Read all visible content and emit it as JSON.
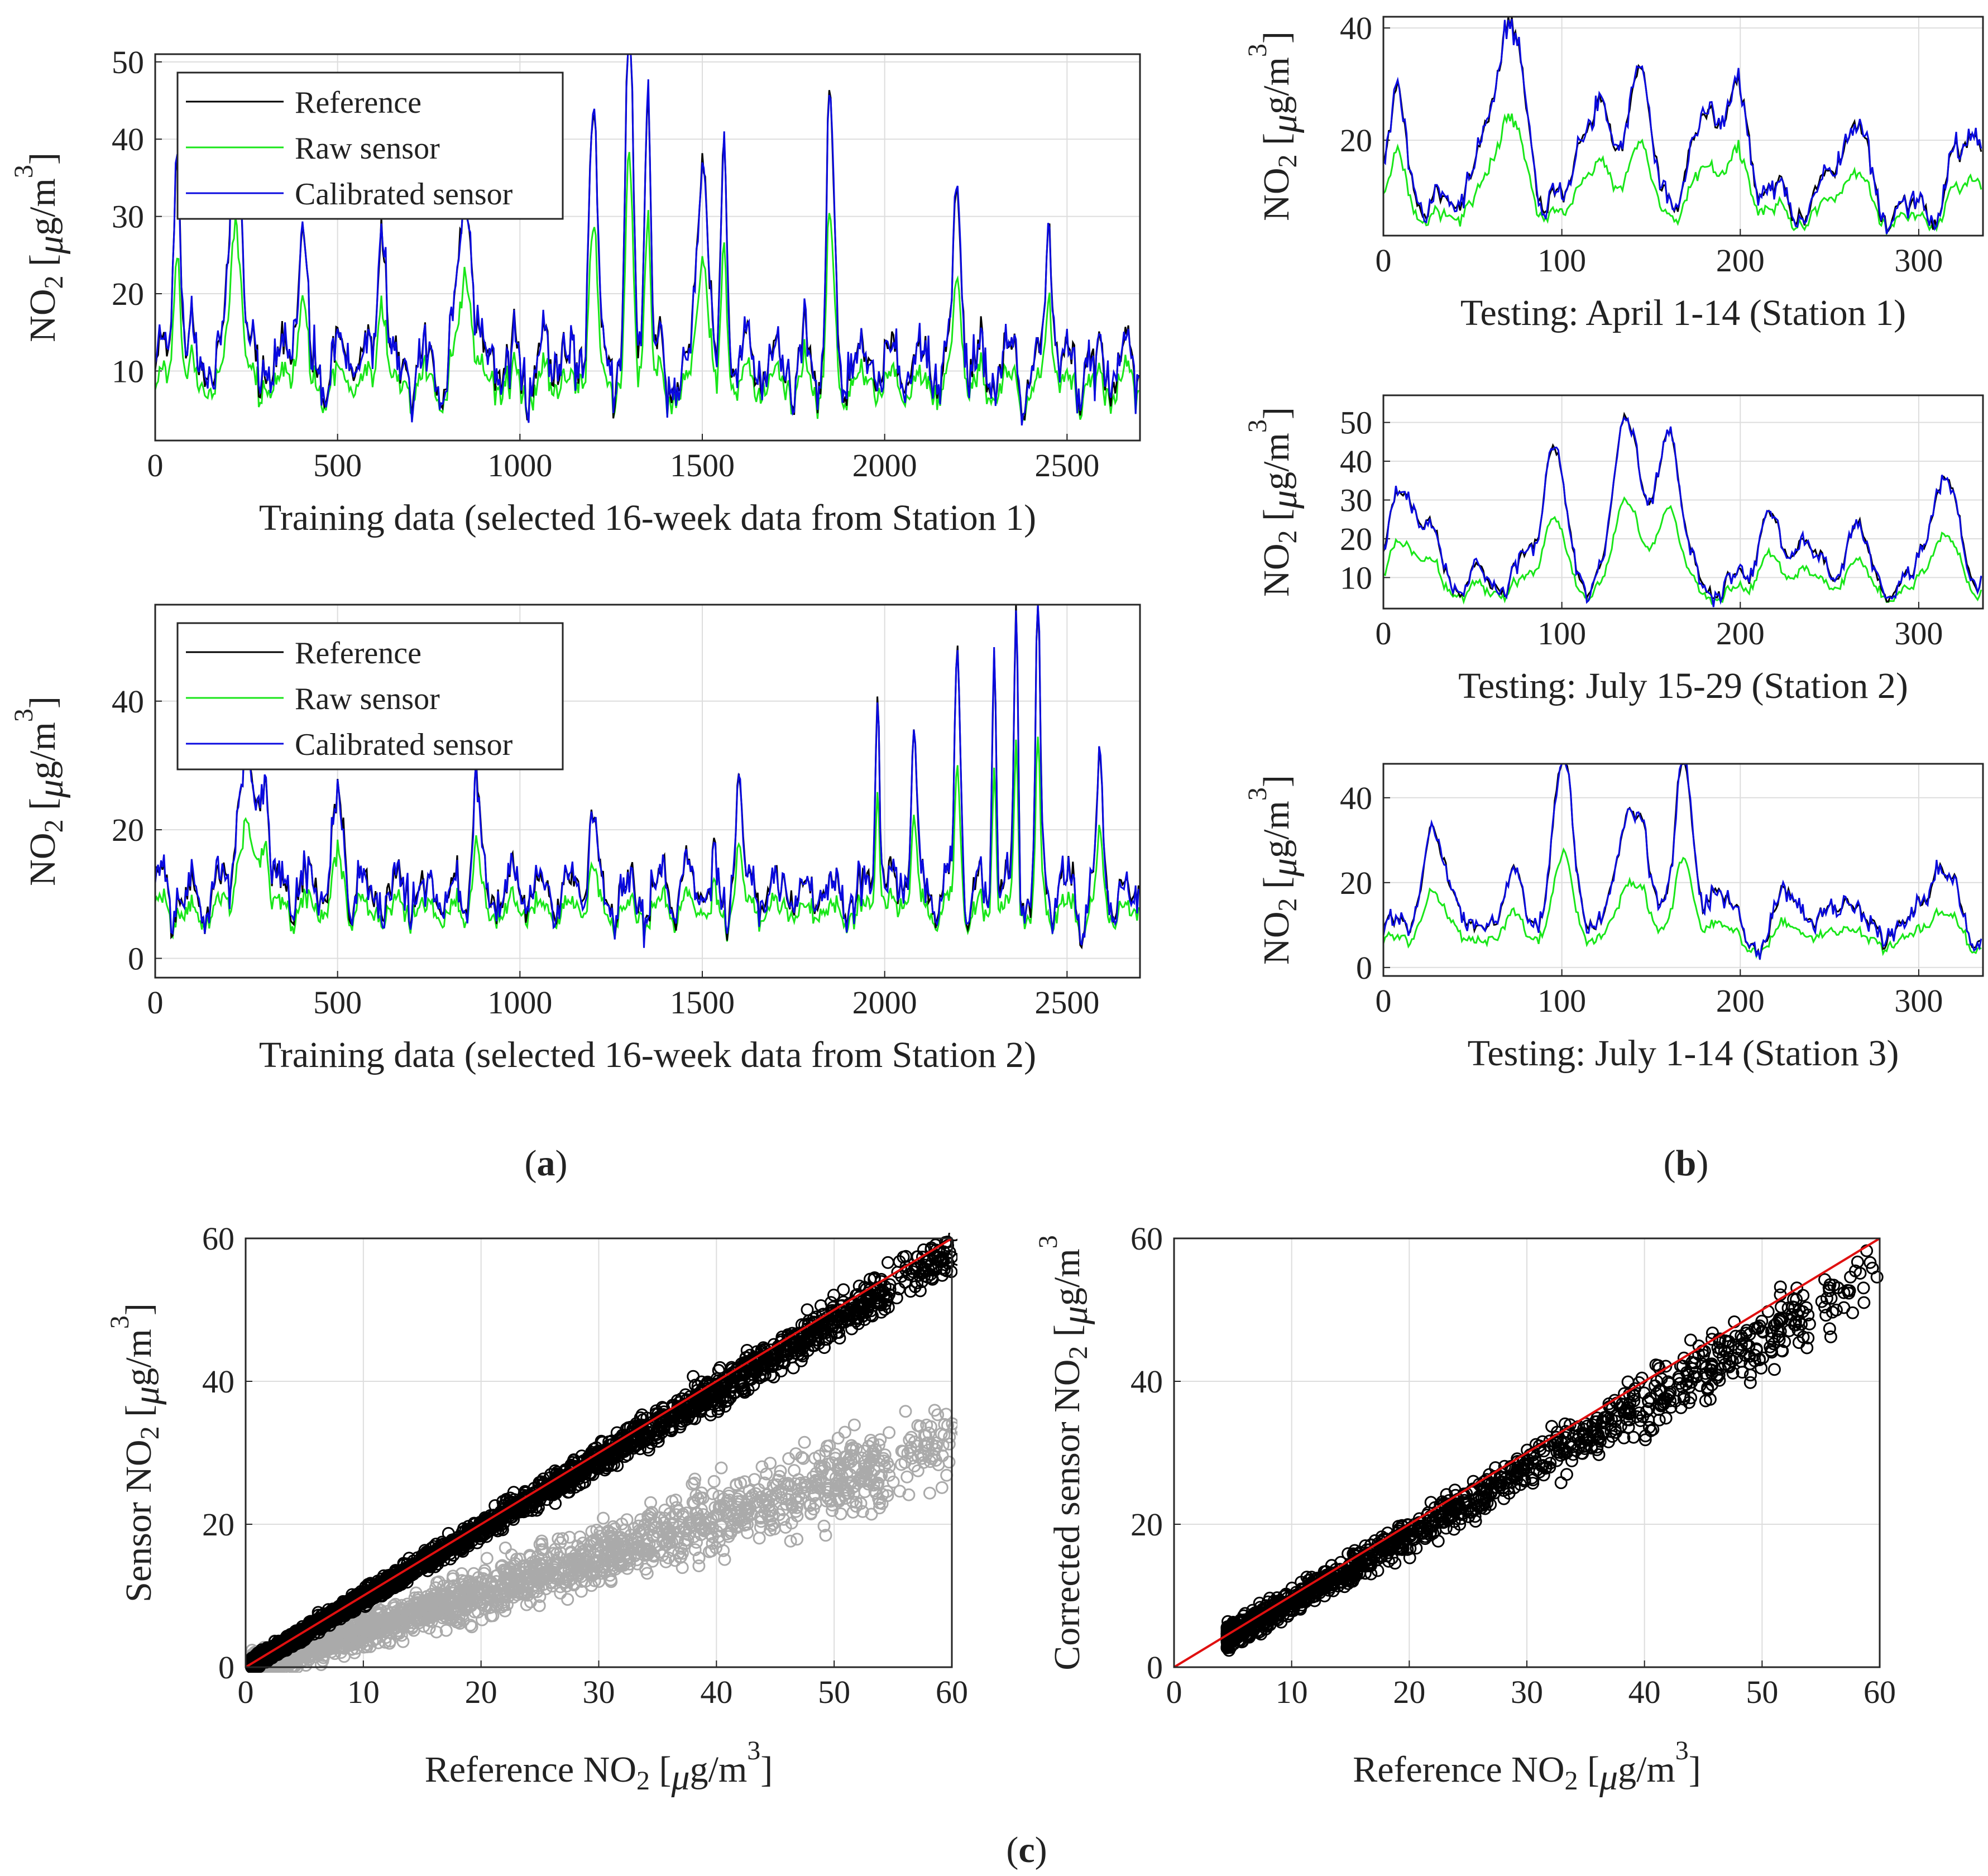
{
  "panel_labels": {
    "a": {
      "open": "(",
      "letter": "a",
      "close": ")"
    },
    "b": {
      "open": "(",
      "letter": "b",
      "close": ")"
    },
    "c": {
      "open": "(",
      "letter": "c",
      "close": ")"
    }
  },
  "colors": {
    "reference": "#000000",
    "raw": "#19e619",
    "calibrated": "#0a0ae0",
    "scatter_calibrated": "#000000",
    "scatter_raw": "#aaaaaa",
    "identity_line": "#e01010",
    "grid": "#dddddd"
  },
  "legend_entries": [
    {
      "key": "ref",
      "label": "Reference"
    },
    {
      "key": "raw",
      "label": "Raw sensor"
    },
    {
      "key": "cal",
      "label": "Calibrated sensor"
    }
  ],
  "ylabel_parts": {
    "main": "NO",
    "sub": "2",
    "unit_pre": " [",
    "mu": "μ",
    "unit_mid": "g/m",
    "sup": "3",
    "unit_post": "]"
  },
  "chart_data": [
    {
      "id": "a1",
      "type": "line",
      "xlabel": "Training data (selected 16-week data from Station 1)",
      "xlim": [
        0,
        2700
      ],
      "ylim": [
        1,
        51
      ],
      "xticks": [
        0,
        500,
        1000,
        1500,
        2000,
        2500
      ],
      "yticks": [
        10,
        20,
        30,
        40,
        50
      ],
      "n_points": 2700,
      "step": 4,
      "seed": 11,
      "base": 11,
      "raw_scale": 0.62,
      "peaks": [
        [
          60,
          30,
          10
        ],
        [
          220,
          38,
          14
        ],
        [
          400,
          16,
          12
        ],
        [
          620,
          20,
          10
        ],
        [
          850,
          26,
          16
        ],
        [
          1200,
          34,
          12
        ],
        [
          1300,
          46,
          10
        ],
        [
          1350,
          36,
          8
        ],
        [
          1500,
          28,
          14
        ],
        [
          1560,
          30,
          8
        ],
        [
          1850,
          33,
          10
        ],
        [
          2200,
          22,
          12
        ],
        [
          2450,
          18,
          10
        ]
      ],
      "series": [
        {
          "name": "Reference"
        },
        {
          "name": "Raw sensor"
        },
        {
          "name": "Calibrated sensor"
        }
      ]
    },
    {
      "id": "a2",
      "type": "line",
      "xlabel": "Training data (selected 16-week data from Station 2)",
      "xlim": [
        0,
        2700
      ],
      "ylim": [
        -3,
        55
      ],
      "xticks": [
        0,
        500,
        1000,
        1500,
        2000,
        2500
      ],
      "yticks": [
        0,
        20,
        40
      ],
      "n_points": 2700,
      "step": 4,
      "seed": 23,
      "base": 10,
      "raw_scale": 0.58,
      "peaks": [
        [
          250,
          22,
          22
        ],
        [
          300,
          18,
          14
        ],
        [
          500,
          12,
          14
        ],
        [
          880,
          18,
          10
        ],
        [
          1200,
          10,
          12
        ],
        [
          1600,
          18,
          8
        ],
        [
          1980,
          32,
          6
        ],
        [
          2080,
          24,
          8
        ],
        [
          2200,
          36,
          8
        ],
        [
          2300,
          38,
          6
        ],
        [
          2360,
          44,
          6
        ],
        [
          2420,
          42,
          6
        ],
        [
          2590,
          18,
          8
        ]
      ],
      "series": [
        {
          "name": "Reference"
        },
        {
          "name": "Raw sensor"
        },
        {
          "name": "Calibrated sensor"
        }
      ]
    },
    {
      "id": "b1",
      "type": "line",
      "xlabel": "Testing: April 1-14 (Station 1)",
      "xlim": [
        0,
        336
      ],
      "ylim": [
        3,
        42
      ],
      "xticks": [
        0,
        100,
        200,
        300
      ],
      "yticks": [
        20,
        40
      ],
      "n_points": 336,
      "step": 1,
      "seed": 5,
      "base": 9,
      "raw_scale": 0.55,
      "peaks": [
        [
          8,
          14,
          6
        ],
        [
          70,
          32,
          8
        ],
        [
          118,
          20,
          7
        ],
        [
          142,
          26,
          6
        ],
        [
          185,
          18,
          9
        ],
        [
          200,
          12,
          6
        ],
        [
          262,
          16,
          7
        ],
        [
          330,
          18,
          6
        ]
      ],
      "series": [
        {
          "name": "Reference"
        },
        {
          "name": "Raw sensor"
        },
        {
          "name": "Calibrated sensor"
        }
      ]
    },
    {
      "id": "b2",
      "type": "line",
      "xlabel": "Testing: July 15-29 (Station 2)",
      "xlim": [
        0,
        336
      ],
      "ylim": [
        2,
        57
      ],
      "xticks": [
        0,
        100,
        200,
        300
      ],
      "yticks": [
        10,
        20,
        30,
        40,
        50
      ],
      "n_points": 336,
      "step": 1,
      "seed": 9,
      "base": 9,
      "raw_scale": 0.55,
      "peaks": [
        [
          15,
          24,
          10
        ],
        [
          95,
          34,
          6
        ],
        [
          137,
          45,
          7
        ],
        [
          160,
          42,
          6
        ],
        [
          215,
          16,
          6
        ],
        [
          235,
          14,
          6
        ],
        [
          265,
          12,
          6
        ],
        [
          313,
          26,
          8
        ]
      ],
      "series": [
        {
          "name": "Reference"
        },
        {
          "name": "Raw sensor"
        },
        {
          "name": "Calibrated sensor"
        }
      ]
    },
    {
      "id": "b3",
      "type": "line",
      "xlabel": "Testing: July 1-14 (Station 3)",
      "xlim": [
        0,
        336
      ],
      "ylim": [
        -2,
        48
      ],
      "xticks": [
        0,
        100,
        200,
        300
      ],
      "yticks": [
        0,
        20,
        40
      ],
      "n_points": 336,
      "step": 1,
      "seed": 14,
      "base": 8,
      "raw_scale": 0.5,
      "peaks": [
        [
          30,
          22,
          8
        ],
        [
          72,
          14,
          6
        ],
        [
          100,
          38,
          6
        ],
        [
          140,
          34,
          7
        ],
        [
          168,
          40,
          5
        ],
        [
          187,
          14,
          6
        ],
        [
          230,
          12,
          8
        ],
        [
          260,
          10,
          6
        ],
        [
          312,
          18,
          8
        ]
      ],
      "series": [
        {
          "name": "Reference"
        },
        {
          "name": "Raw sensor"
        },
        {
          "name": "Calibrated sensor"
        }
      ]
    },
    {
      "id": "c1",
      "type": "scatter",
      "xlabel_parts": {
        "main": "Reference NO",
        "sub": "2",
        "unit_pre": " [",
        "mu": "μ",
        "unit_mid": "g/m",
        "sup": "3",
        "unit_post": "]"
      },
      "ylabel_parts": {
        "main": "Sensor NO",
        "sub": "2",
        "unit_pre": " [",
        "mu": "μ",
        "unit_mid": "g/m",
        "sup": "3",
        "unit_post": "]"
      },
      "xlim": [
        0,
        60
      ],
      "ylim": [
        0,
        60
      ],
      "xticks": [
        0,
        10,
        20,
        30,
        40,
        50,
        60
      ],
      "yticks": [
        0,
        20,
        40,
        60
      ],
      "series": [
        {
          "name": "Raw sensor",
          "n": 2200,
          "slope": 0.52,
          "noise": 3.2,
          "xmax": 58,
          "seed": 31
        },
        {
          "name": "Calibrated sensor",
          "n": 2600,
          "slope": 0.97,
          "noise": 1.6,
          "xmax": 58,
          "seed": 47
        }
      ],
      "identity": [
        0,
        60
      ]
    },
    {
      "id": "c2",
      "type": "scatter",
      "xlabel_parts": {
        "main": "Reference NO",
        "sub": "2",
        "unit_pre": " [",
        "mu": "μ",
        "unit_mid": "g/m",
        "sup": "3",
        "unit_post": "]"
      },
      "ylabel_parts": {
        "main": "Corrected sensor NO",
        "sub": "2",
        "unit_pre": " [",
        "mu": "μ",
        "unit_mid": "g/m",
        "sup": "3",
        "unit_post": ""
      },
      "xlim": [
        0,
        60
      ],
      "ylim": [
        0,
        60
      ],
      "xticks": [
        0,
        10,
        20,
        30,
        40,
        50,
        60
      ],
      "yticks": [
        0,
        20,
        40,
        60
      ],
      "series": [
        {
          "name": "Corrected sensor",
          "n": 1200,
          "slope": 0.92,
          "noise": 2.6,
          "xmin": 4.5,
          "xmax": 57,
          "seed": 59
        }
      ],
      "identity": [
        0,
        60
      ]
    }
  ]
}
